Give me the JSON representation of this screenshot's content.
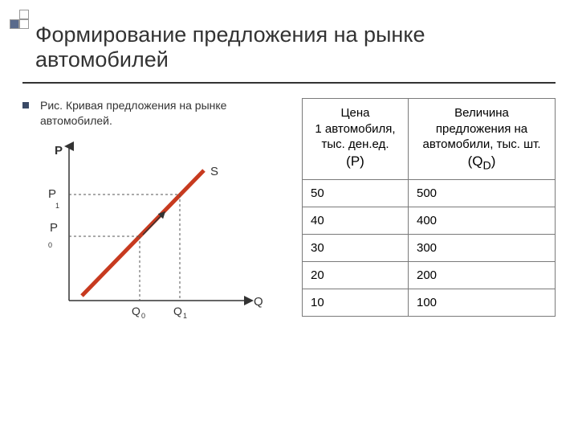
{
  "decoration": {
    "sq_fill": "#5a6b8c",
    "sq_stroke": "#888"
  },
  "title": "Формирование предложения на рынке автомобилей",
  "caption": "Рис. Кривая предложения на рынке автомобилей.",
  "chart": {
    "type": "line",
    "axis_color": "#333333",
    "line_color": "#c73a1f",
    "line_width": 5,
    "dash_color": "#555555",
    "y_label": "P",
    "x_label": "Q",
    "curve_label": "S",
    "y_ticks": [
      "P",
      "P"
    ],
    "y_tick_sub": [
      "1",
      "0"
    ],
    "x_ticks": [
      "Q",
      "Q"
    ],
    "x_tick_sub": [
      "0",
      "1"
    ],
    "label_fontsize": 13
  },
  "table": {
    "headers": [
      {
        "line1": "Цена",
        "line2": "1 автомобиля,",
        "line3": "тыс. ден.ед.",
        "sym": "(P)"
      },
      {
        "line1": "Величина",
        "line2": "предложения на",
        "line3": "автомобили, тыс. шт.",
        "sym_html": "(Q<sub>D</sub>)"
      }
    ],
    "rows": [
      [
        "50",
        "500"
      ],
      [
        "40",
        "400"
      ],
      [
        "30",
        "300"
      ],
      [
        "20",
        "200"
      ],
      [
        "10",
        "100"
      ]
    ]
  }
}
